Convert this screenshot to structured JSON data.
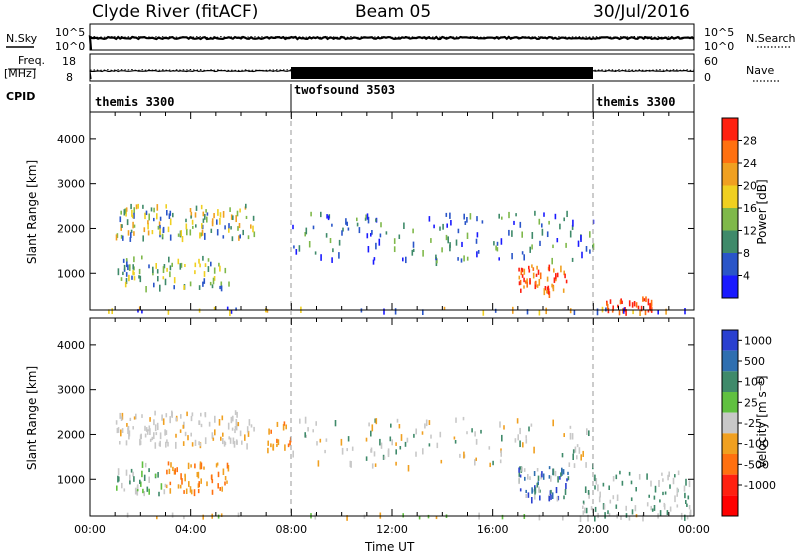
{
  "header": {
    "station": "Clyde River (fitACF)",
    "beam": "Beam 05",
    "date": "30/Jul/2016"
  },
  "status_panels": {
    "nsky_label": "N.Sky",
    "nsearch_label": "N.Search",
    "noise_ticks": [
      "10^5",
      "10^0"
    ],
    "freq_label": "Freq.",
    "freq_unit": "[MHz]",
    "freq_ticks": [
      "18",
      "8"
    ],
    "nave_label": "Nave",
    "nave_ticks": [
      "60",
      "0"
    ],
    "cpid_label": "CPID",
    "modes": [
      {
        "name": "themis 3300",
        "start_hour": 0,
        "end_hour": 8
      },
      {
        "name": "twofsound 3503",
        "start_hour": 8,
        "end_hour": 20
      },
      {
        "name": "themis 3300",
        "start_hour": 20,
        "end_hour": 24
      }
    ]
  },
  "axes": {
    "ylabel": "Slant Range [km]",
    "xlabel": "Time UT",
    "x_tick_labels": [
      "00:00",
      "04:00",
      "08:00",
      "12:00",
      "16:00",
      "20:00",
      "00:00"
    ],
    "y_tick_labels": [
      "1000",
      "2000",
      "3000",
      "4000"
    ]
  },
  "power_scale": {
    "label": "Power [dB]",
    "ticks": [
      "4",
      "8",
      "12",
      "16",
      "20",
      "24",
      "28"
    ],
    "colors": [
      "#1a1aff",
      "#2a55c8",
      "#3f8a6a",
      "#7fb84a",
      "#f0d020",
      "#f0a020",
      "#ff7010",
      "#ff2010"
    ]
  },
  "velocity_scale": {
    "label": "Velocity [m s⁻¹]",
    "ticks": [
      "1000",
      "500",
      "100",
      "25",
      "-25",
      "-100",
      "-500",
      "-1000"
    ],
    "colors": [
      "#2a40d0",
      "#2f6fb0",
      "#3f8a6a",
      "#60c040",
      "#c8c8c8",
      "#f0a020",
      "#ff7010",
      "#ff2010",
      "#ff0000"
    ]
  },
  "chart_data": [
    {
      "type": "heatmap",
      "title": "Power",
      "xlabel": "Time UT",
      "ylabel": "Slant Range [km]",
      "xlim_hours": [
        0,
        24
      ],
      "ylim_km": [
        180,
        4600
      ],
      "colorbar": {
        "label": "Power [dB]",
        "range": [
          0,
          32
        ]
      },
      "echo_regions": [
        {
          "t0": 1.0,
          "t1": 6.5,
          "r0": 1800,
          "r1": 2550,
          "level": "12-20 dB"
        },
        {
          "t0": 1.0,
          "t1": 5.5,
          "r0": 700,
          "r1": 1400,
          "level": "8-20 dB"
        },
        {
          "t0": 17.0,
          "t1": 19.0,
          "r0": 600,
          "r1": 1200,
          "level": "24-32 dB"
        },
        {
          "t0": 20.5,
          "t1": 22.3,
          "r0": 180,
          "r1": 500,
          "level": "28-32 dB"
        },
        {
          "t0": 8.0,
          "t1": 20.0,
          "r0": 1300,
          "r1": 2400,
          "level": "4-12 dB"
        }
      ]
    },
    {
      "type": "heatmap",
      "title": "Velocity",
      "xlabel": "Time UT",
      "ylabel": "Slant Range [km]",
      "xlim_hours": [
        0,
        24
      ],
      "ylim_km": [
        180,
        4600
      ],
      "colorbar": {
        "label": "Velocity [m s⁻¹]",
        "range": [
          -1000,
          1000
        ]
      },
      "echo_regions": [
        {
          "t0": 1.0,
          "t1": 6.5,
          "r0": 1800,
          "r1": 2550,
          "level": "-25 to 25 m/s"
        },
        {
          "t0": 3.0,
          "t1": 5.5,
          "r0": 700,
          "r1": 1400,
          "level": "-100 to -500 m/s"
        },
        {
          "t0": 17.0,
          "t1": 19.0,
          "r0": 600,
          "r1": 1300,
          "level": "100 to 1000 m/s"
        },
        {
          "t0": 7.0,
          "t1": 8.0,
          "r0": 1700,
          "r1": 2300,
          "level": "-100 to -500 m/s"
        }
      ]
    }
  ]
}
